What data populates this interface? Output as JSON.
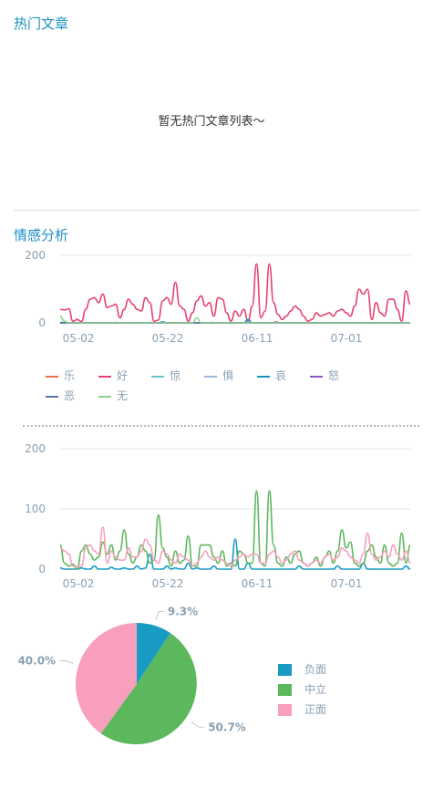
{
  "hot": {
    "title": "热门文章",
    "empty_text": "暂无热门文章列表～"
  },
  "emotion": {
    "title": "情感分析"
  },
  "chart_data": [
    {
      "type": "line",
      "ylim": [
        0,
        200
      ],
      "yticks": [
        0,
        200
      ],
      "x_ticks": [
        "05-02",
        "05-22",
        "06-11",
        "07-01"
      ],
      "legend_position": "bottom-left",
      "grid": true,
      "series": [
        {
          "name": "乐",
          "color": "#e8714f",
          "values": [
            0,
            0,
            0,
            0,
            0,
            0,
            1,
            0,
            0,
            0,
            0,
            0,
            0,
            1,
            0,
            0,
            0,
            0,
            0,
            0,
            0,
            1,
            0,
            0,
            0,
            0,
            0,
            0,
            0,
            0,
            0,
            0,
            0,
            0,
            0,
            1,
            0,
            0,
            0,
            0,
            0,
            0,
            0,
            0,
            0,
            0,
            0,
            0,
            0,
            0,
            3,
            0,
            0,
            0,
            0,
            0,
            0,
            0,
            0,
            0,
            0,
            0,
            0,
            0,
            0,
            0,
            0,
            0,
            0,
            0,
            0,
            0,
            0,
            0,
            0,
            0,
            0,
            0,
            0,
            0,
            0,
            0
          ]
        },
        {
          "name": "好",
          "color": "#e8416f",
          "values": [
            40,
            38,
            42,
            5,
            10,
            4,
            40,
            70,
            75,
            60,
            85,
            45,
            50,
            55,
            15,
            40,
            70,
            55,
            40,
            35,
            75,
            60,
            5,
            8,
            65,
            75,
            55,
            120,
            50,
            40,
            5,
            30,
            65,
            80,
            50,
            60,
            20,
            75,
            70,
            30,
            5,
            35,
            20,
            40,
            5,
            50,
            175,
            15,
            35,
            175,
            60,
            25,
            10,
            20,
            35,
            50,
            40,
            20,
            5,
            10,
            30,
            20,
            25,
            30,
            20,
            35,
            40,
            30,
            20,
            50,
            100,
            85,
            100,
            10,
            60,
            30,
            20,
            70,
            70,
            40,
            5,
            95,
            55
          ]
        },
        {
          "name": "惊",
          "color": "#6cc6c6",
          "values": [
            0,
            0,
            0,
            0,
            0,
            0,
            0,
            0,
            0,
            0,
            0,
            0,
            0,
            0,
            0,
            0,
            0,
            0,
            0,
            0,
            0,
            0,
            0,
            0,
            0,
            0,
            0,
            0,
            0,
            0,
            0,
            0,
            0,
            0,
            0,
            0,
            0,
            0,
            0,
            0,
            0,
            0,
            0,
            0,
            0,
            0,
            0,
            0,
            0,
            0,
            0,
            0,
            0,
            0,
            0,
            0,
            0,
            0,
            0,
            0,
            0,
            0,
            0,
            0,
            0,
            0,
            0,
            0,
            0,
            0,
            0,
            0,
            0,
            0,
            0,
            0,
            0,
            0,
            0,
            0,
            0,
            0,
            0
          ]
        },
        {
          "name": "惧",
          "color": "#9fb7d8",
          "values": [
            0,
            0,
            0,
            0,
            0,
            0,
            0,
            0,
            0,
            0,
            0,
            0,
            0,
            0,
            0,
            0,
            0,
            0,
            0,
            0,
            0,
            0,
            0,
            0,
            0,
            0,
            0,
            0,
            0,
            0,
            0,
            0,
            0,
            0,
            0,
            0,
            0,
            0,
            0,
            0,
            0,
            0,
            0,
            0,
            0,
            0,
            0,
            0,
            0,
            0,
            0,
            0,
            0,
            0,
            0,
            0,
            0,
            0,
            0,
            0,
            0,
            0,
            0,
            0,
            0,
            0,
            0,
            0,
            0,
            0,
            0,
            0,
            0,
            0,
            0,
            0,
            0,
            0,
            0,
            0,
            0,
            0,
            0
          ]
        },
        {
          "name": "哀",
          "color": "#1793b8",
          "values": [
            2,
            0,
            0,
            0,
            0,
            0,
            0,
            0,
            0,
            0,
            0,
            0,
            0,
            0,
            0,
            0,
            0,
            0,
            0,
            0,
            0,
            0,
            0,
            0,
            3,
            0,
            0,
            0,
            0,
            0,
            0,
            0,
            0,
            0,
            0,
            0,
            0,
            0,
            0,
            0,
            0,
            0,
            0,
            0,
            10,
            0,
            0,
            0,
            0,
            0,
            0,
            0,
            0,
            0,
            0,
            0,
            0,
            0,
            0,
            0,
            0,
            0,
            0,
            0,
            0,
            0,
            0,
            0,
            0,
            0,
            0,
            0,
            0,
            0,
            0,
            0,
            0,
            0,
            0,
            0,
            0,
            0,
            0
          ]
        },
        {
          "name": "怒",
          "color": "#8a56c2",
          "values": [
            0,
            0,
            0,
            0,
            0,
            0,
            0,
            0,
            0,
            0,
            0,
            0,
            0,
            0,
            0,
            0,
            0,
            0,
            0,
            0,
            0,
            0,
            0,
            0,
            0,
            0,
            0,
            0,
            0,
            0,
            0,
            0,
            0,
            0,
            0,
            0,
            0,
            0,
            0,
            0,
            0,
            0,
            0,
            0,
            0,
            0,
            0,
            0,
            0,
            0,
            0,
            0,
            0,
            0,
            0,
            0,
            0,
            0,
            0,
            0,
            0,
            0,
            0,
            0,
            0,
            0,
            0,
            0,
            0,
            0,
            0,
            0,
            0,
            0,
            0,
            0,
            0,
            0,
            0,
            0,
            0,
            0,
            0
          ]
        },
        {
          "name": "恶",
          "color": "#5a75ab",
          "values": [
            0,
            0,
            0,
            0,
            0,
            0,
            0,
            0,
            0,
            0,
            0,
            0,
            0,
            0,
            0,
            0,
            0,
            0,
            0,
            0,
            0,
            0,
            0,
            0,
            0,
            0,
            0,
            0,
            0,
            0,
            0,
            0,
            0,
            0,
            0,
            0,
            0,
            0,
            0,
            0,
            0,
            0,
            0,
            0,
            0,
            0,
            0,
            0,
            0,
            0,
            0,
            0,
            0,
            0,
            0,
            0,
            0,
            0,
            0,
            0,
            0,
            0,
            0,
            0,
            0,
            0,
            0,
            0,
            0,
            0,
            0,
            0,
            0,
            0,
            0,
            0,
            0,
            0,
            0,
            0,
            0,
            0,
            0
          ]
        },
        {
          "name": "无",
          "color": "#8ed18c",
          "values": [
            20,
            5,
            0,
            0,
            0,
            0,
            0,
            0,
            0,
            0,
            0,
            0,
            0,
            0,
            0,
            0,
            0,
            0,
            0,
            0,
            0,
            0,
            0,
            0,
            0,
            0,
            0,
            0,
            0,
            0,
            0,
            0,
            15,
            0,
            0,
            0,
            0,
            0,
            0,
            0,
            0,
            0,
            0,
            0,
            0,
            0,
            0,
            0,
            0,
            0,
            0,
            0,
            0,
            0,
            0,
            0,
            0,
            0,
            0,
            0,
            0,
            0,
            0,
            0,
            0,
            0,
            0,
            0,
            0,
            0,
            0,
            0,
            0,
            0,
            0,
            0,
            0,
            0,
            0,
            0,
            0,
            0,
            0
          ]
        }
      ]
    },
    {
      "type": "line",
      "ylim": [
        0,
        200
      ],
      "yticks": [
        0,
        100,
        200
      ],
      "x_ticks": [
        "05-02",
        "05-22",
        "06-11",
        "07-01"
      ],
      "grid": true,
      "series": [
        {
          "name": "负面",
          "color": "#1a9bc4",
          "values": [
            2,
            0,
            0,
            0,
            0,
            2,
            0,
            0,
            5,
            0,
            0,
            0,
            3,
            0,
            0,
            2,
            0,
            0,
            5,
            0,
            2,
            25,
            0,
            0,
            0,
            5,
            0,
            2,
            0,
            0,
            10,
            0,
            2,
            0,
            0,
            0,
            5,
            0,
            0,
            0,
            0,
            50,
            0,
            0,
            10,
            0,
            0,
            0,
            0,
            0,
            0,
            0,
            0,
            0,
            0,
            0,
            5,
            0,
            0,
            0,
            0,
            0,
            0,
            0,
            0,
            5,
            0,
            0,
            0,
            0,
            0,
            10,
            0,
            0,
            0,
            0,
            0,
            0,
            0,
            0,
            0,
            5,
            0
          ]
        },
        {
          "name": "中立",
          "color": "#5cb85c",
          "values": [
            40,
            10,
            5,
            8,
            0,
            30,
            40,
            25,
            15,
            20,
            45,
            25,
            40,
            15,
            30,
            65,
            25,
            10,
            20,
            40,
            30,
            10,
            15,
            90,
            35,
            20,
            5,
            30,
            10,
            15,
            55,
            5,
            5,
            40,
            40,
            40,
            20,
            10,
            30,
            5,
            10,
            5,
            30,
            25,
            10,
            10,
            130,
            10,
            5,
            130,
            40,
            10,
            5,
            20,
            10,
            25,
            30,
            10,
            5,
            10,
            20,
            5,
            20,
            30,
            10,
            30,
            65,
            35,
            45,
            10,
            5,
            10,
            30,
            40,
            20,
            10,
            40,
            10,
            5,
            10,
            60,
            10,
            40
          ]
        },
        {
          "name": "正面",
          "color": "#f79fbc",
          "values": [
            35,
            30,
            25,
            5,
            5,
            5,
            35,
            40,
            30,
            25,
            70,
            10,
            30,
            20,
            15,
            15,
            35,
            20,
            20,
            30,
            50,
            40,
            15,
            10,
            30,
            25,
            15,
            10,
            25,
            20,
            15,
            5,
            10,
            20,
            30,
            20,
            15,
            20,
            15,
            10,
            5,
            15,
            20,
            25,
            20,
            25,
            25,
            10,
            10,
            25,
            30,
            20,
            10,
            15,
            25,
            30,
            15,
            10,
            5,
            10,
            15,
            10,
            20,
            25,
            15,
            20,
            35,
            30,
            20,
            15,
            10,
            25,
            60,
            25,
            15,
            20,
            30,
            20,
            40,
            25,
            15,
            30,
            10
          ]
        }
      ]
    },
    {
      "type": "pie",
      "slices": [
        {
          "name": "负面",
          "value": 9.3,
          "label": "9.3%",
          "color": "#1a9bc4"
        },
        {
          "name": "中立",
          "value": 50.7,
          "label": "50.7%",
          "color": "#5cb85c"
        },
        {
          "name": "正面",
          "value": 40.0,
          "label": "40.0%",
          "color": "#f79fbc"
        }
      ],
      "legend_position": "right"
    }
  ]
}
